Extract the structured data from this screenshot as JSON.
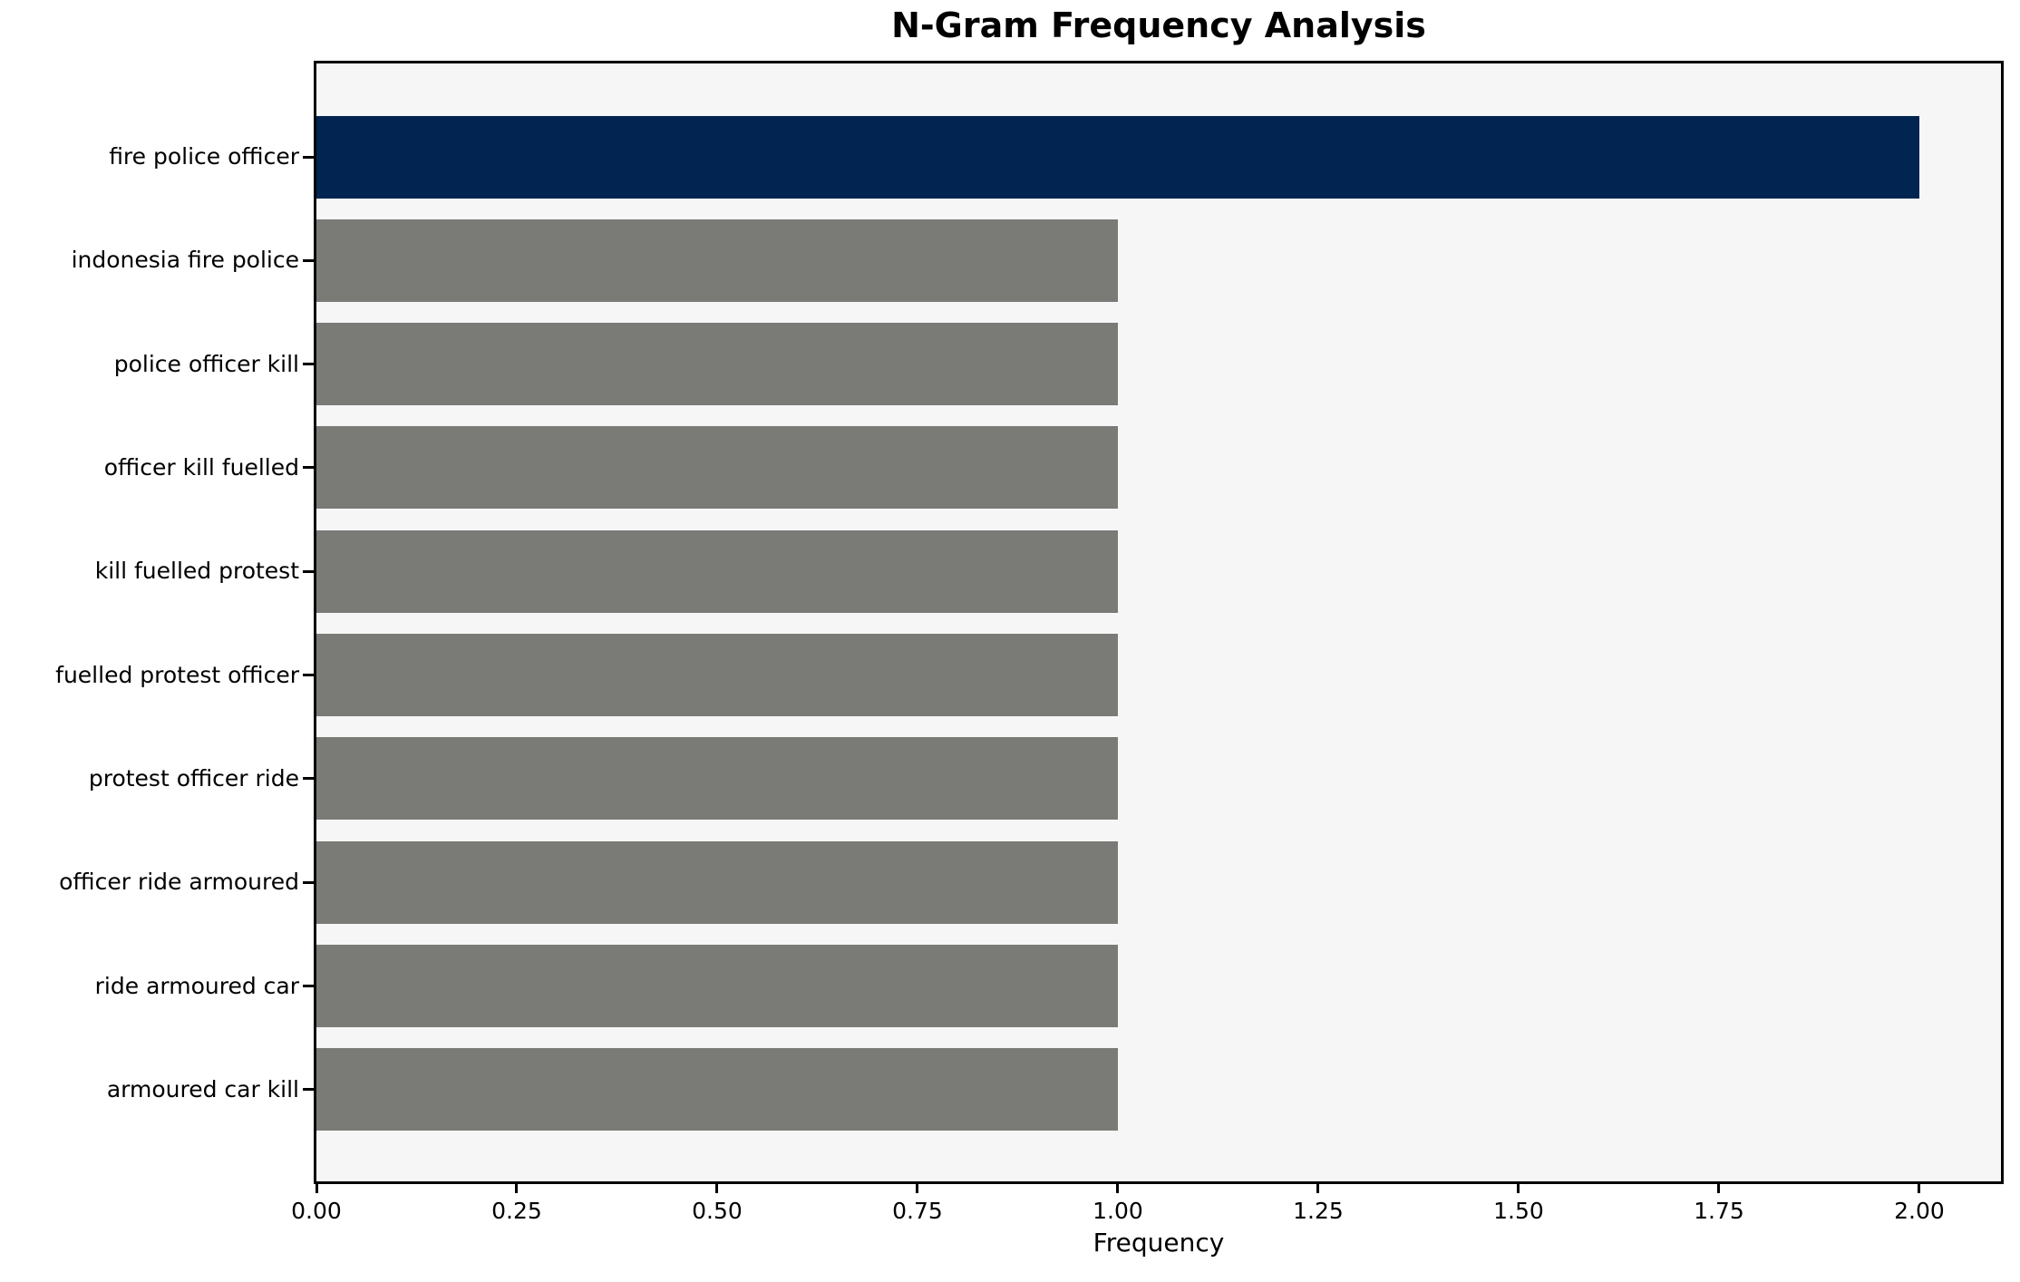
{
  "chart_data": {
    "type": "bar",
    "orientation": "horizontal",
    "title": "N-Gram Frequency Analysis",
    "xlabel": "Frequency",
    "ylabel": "",
    "categories": [
      "fire police officer",
      "indonesia fire police",
      "police officer kill",
      "officer kill fuelled",
      "kill fuelled protest",
      "fuelled protest officer",
      "protest officer ride",
      "officer ride armoured",
      "ride armoured car",
      "armoured car kill"
    ],
    "values": [
      2.0,
      1.0,
      1.0,
      1.0,
      1.0,
      1.0,
      1.0,
      1.0,
      1.0,
      1.0
    ],
    "bar_colors": [
      "#012550",
      "#7a7a77",
      "#7a7a77",
      "#7a7a77",
      "#7a7a77",
      "#7a7a77",
      "#7a7a77",
      "#7a7a77",
      "#7a7a77",
      "#7a7a77"
    ],
    "xlim": [
      0,
      2.102
    ],
    "xticks": [
      0.0,
      0.25,
      0.5,
      0.75,
      1.0,
      1.25,
      1.5,
      1.75,
      2.0
    ],
    "xtick_labels": [
      "0.00",
      "0.25",
      "0.50",
      "0.75",
      "1.00",
      "1.25",
      "1.50",
      "1.75",
      "2.00"
    ],
    "grid": false,
    "legend": null,
    "colors": {
      "highlight_bar": "#012550",
      "default_bar": "#7a7a77",
      "plot_background": "#f6f6f6",
      "figure_background": "#ffffff",
      "spine": "#000000",
      "text": "#000000"
    }
  }
}
